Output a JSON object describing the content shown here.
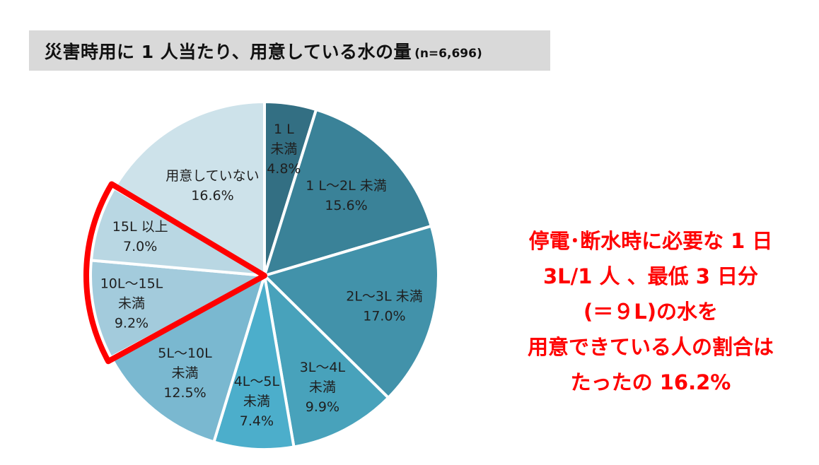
{
  "title": {
    "main": "災害時用に 1 人当たり、用意している水の量",
    "sample": "(n=6,696)"
  },
  "chart_data": {
    "type": "pie",
    "title": "災害時用に 1 人当たり、用意している水の量(n=6,696)",
    "start": "12 o'clock",
    "direction": "clockwise",
    "slices": [
      {
        "label_lines": [
          "1 L",
          "未満"
        ],
        "value": 4.8,
        "value_text": "4.8%",
        "color": "#336f83"
      },
      {
        "label_lines": [
          "1 L～2L 未満"
        ],
        "value": 15.6,
        "value_text": "15.6%",
        "color": "#3a8298"
      },
      {
        "label_lines": [
          "2L～3L 未満"
        ],
        "value": 17.0,
        "value_text": "17.0%",
        "color": "#4292aa"
      },
      {
        "label_lines": [
          "3L～4L",
          "未満"
        ],
        "value": 9.9,
        "value_text": "9.9%",
        "color": "#48a2bb"
      },
      {
        "label_lines": [
          "4L～5L",
          "未満"
        ],
        "value": 7.4,
        "value_text": "7.4%",
        "color": "#4caecb"
      },
      {
        "label_lines": [
          "5L～10L",
          "未満"
        ],
        "value": 12.5,
        "value_text": "12.5%",
        "color": "#7ab8d0"
      },
      {
        "label_lines": [
          "10L～15L",
          "未満"
        ],
        "value": 9.2,
        "value_text": "9.2%",
        "color": "#a3cbdc"
      },
      {
        "label_lines": [
          "15L 以上"
        ],
        "value": 7.0,
        "value_text": "7.0%",
        "color": "#b9d7e3"
      },
      {
        "label_lines": [
          "用意していない"
        ],
        "value": 16.6,
        "value_text": "16.6%",
        "color": "#cde2ea"
      }
    ],
    "highlighted_slices": [
      "10L～15L",
      "15L 以上"
    ],
    "highlight_color": "#ff0000"
  },
  "callout": {
    "text": "停電･断水時に必要な 1 日\n3L/1 人 、最低 3 日分\n(＝９L)の水を\n用意できている人の割合は\nたったの 16.2%"
  }
}
